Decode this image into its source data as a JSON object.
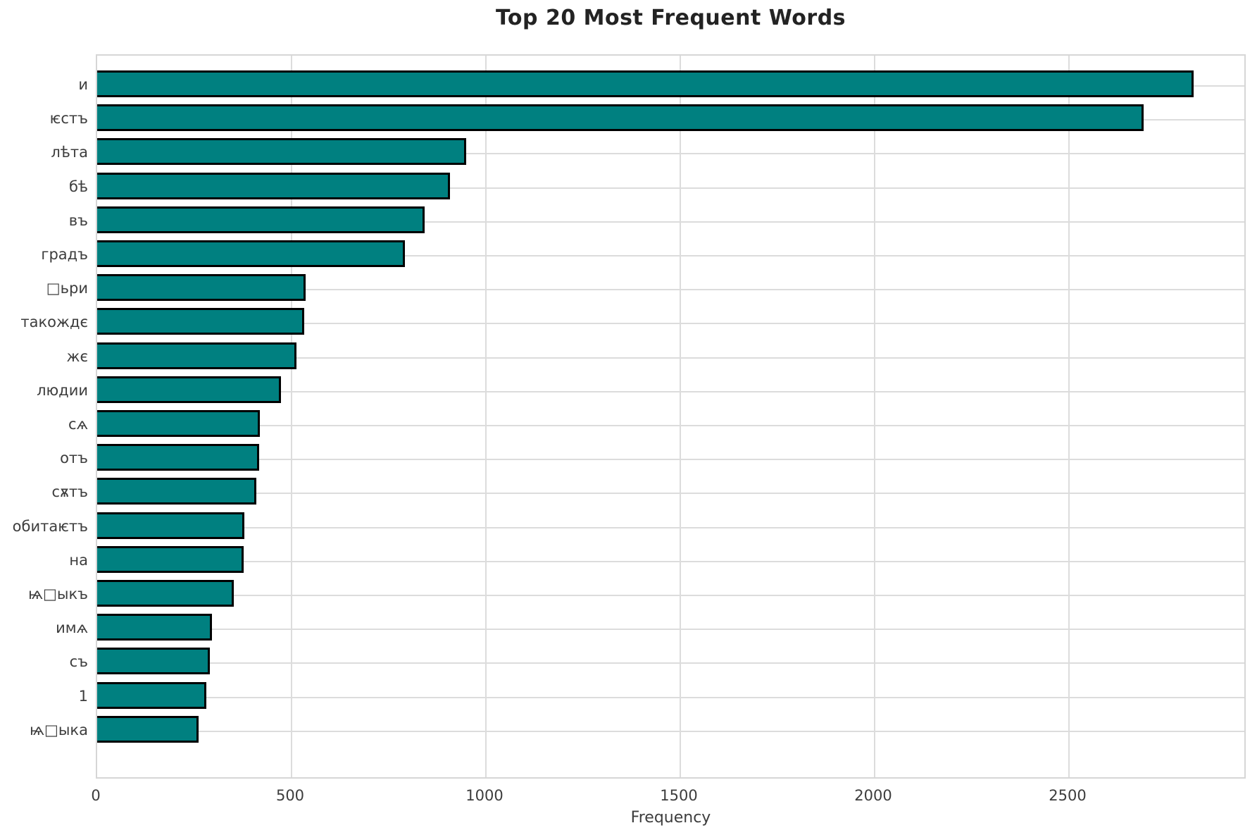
{
  "title": "Top 20 Most Frequent Words",
  "colors": {
    "bar_fill": "#008080",
    "bar_edge": "#000000",
    "grid": "#dcdcdc",
    "spine": "#d6d6d6",
    "tick_text": "#3d3d3d",
    "title_text": "#232323",
    "background": "#ffffff"
  },
  "chart_data": {
    "type": "bar",
    "orientation": "horizontal",
    "title": "Top 20 Most Frequent Words",
    "xlabel": "Frequency",
    "ylabel": "",
    "grid": true,
    "legend": false,
    "xlim": [
      0,
      2958
    ],
    "x_ticks": [
      0,
      500,
      1000,
      1500,
      2000,
      2500
    ],
    "categories": [
      "и",
      "ѥстъ",
      "лѣта",
      "бѣ",
      "въ",
      "градъ",
      "□ьри",
      "такождє",
      "жє",
      "людии",
      "сѧ",
      "отъ",
      "сѫтъ",
      "обитаѥтъ",
      "на",
      "ѩ□ыкъ",
      "имѧ",
      "съ",
      "1",
      "ѩ□ыка"
    ],
    "values": [
      2820,
      2692,
      950,
      908,
      842,
      792,
      537,
      533,
      513,
      472,
      418,
      416,
      410,
      378,
      377,
      351,
      296,
      289,
      281,
      260
    ]
  }
}
